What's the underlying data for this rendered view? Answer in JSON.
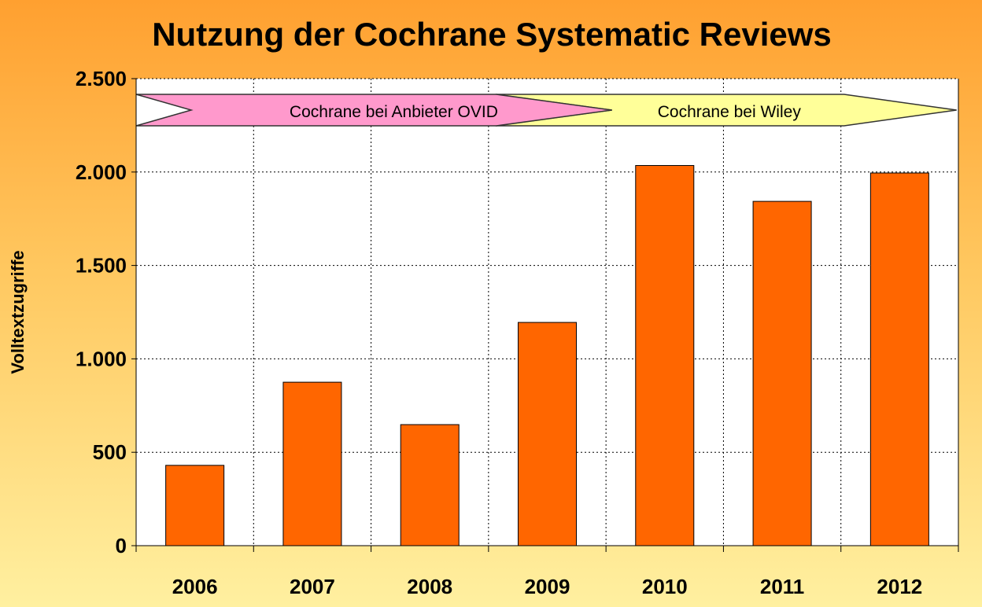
{
  "chart_data": {
    "type": "bar",
    "title": "Nutzung der Cochrane Systematic Reviews",
    "xlabel": "",
    "ylabel": "Volltextzugriffe",
    "categories": [
      "2006",
      "2007",
      "2008",
      "2009",
      "2010",
      "2011",
      "2012"
    ],
    "values": [
      430,
      875,
      648,
      1195,
      2035,
      1843,
      1995
    ],
    "ylim": [
      0,
      2500
    ],
    "yticks": [
      0,
      500,
      1000,
      1500,
      2000,
      2500
    ],
    "ytick_labels": [
      "0",
      "500",
      "1.000",
      "1.500",
      "2.000",
      "2.500"
    ],
    "grid": true,
    "bar_color": "#ff6600",
    "annotations": [
      {
        "text": "Cochrane bei Anbieter OVID",
        "from": "2006",
        "to": "2009",
        "color": "#ff99cc"
      },
      {
        "text": "Cochrane bei Wiley",
        "from": "2009",
        "to": "2012",
        "color": "#ffff99"
      }
    ]
  }
}
